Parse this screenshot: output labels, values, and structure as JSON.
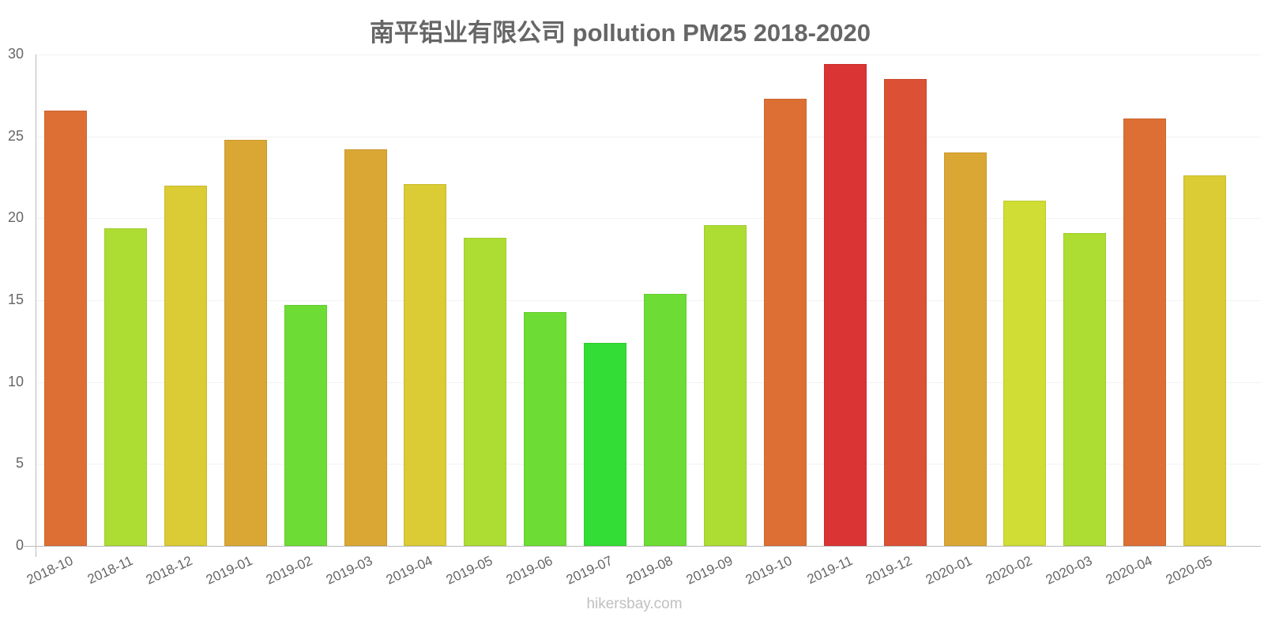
{
  "title": "南平铝业有限公司 pollution PM25 2018-2020",
  "watermark": "hikersbay.com",
  "yaxis": {
    "ticks": [
      "0",
      "5",
      "10",
      "15",
      "20",
      "25",
      "30"
    ]
  },
  "chart_data": {
    "type": "bar",
    "title": "南平铝业有限公司 pollution PM25 2018-2020",
    "xlabel": "",
    "ylabel": "",
    "ylim": [
      0,
      30
    ],
    "grid": true,
    "legend": "none",
    "categories": [
      "2018-10",
      "2018-11",
      "2018-12",
      "2019-01",
      "2019-02",
      "2019-03",
      "2019-04",
      "2019-05",
      "2019-06",
      "2019-07",
      "2019-08",
      "2019-09",
      "2019-10",
      "2019-11",
      "2019-12",
      "2020-01",
      "2020-02",
      "2020-03",
      "2020-04",
      "2020-05"
    ],
    "values": [
      26.6,
      19.4,
      22.0,
      24.8,
      14.7,
      24.2,
      22.1,
      18.8,
      14.3,
      12.4,
      15.4,
      19.6,
      27.3,
      29.4,
      28.5,
      24.0,
      21.1,
      19.1,
      26.1,
      22.6
    ],
    "colors": [
      "#dd6f35",
      "#addd33",
      "#dbcb34",
      "#dba734",
      "#6ddd35",
      "#dba734",
      "#dbcb34",
      "#addd33",
      "#6ddd35",
      "#34dd35",
      "#6ddd35",
      "#addd33",
      "#dd6f35",
      "#db3434",
      "#dc5135",
      "#dba734",
      "#cfdd34",
      "#addd33",
      "#dd6f35",
      "#dbcb34"
    ]
  }
}
